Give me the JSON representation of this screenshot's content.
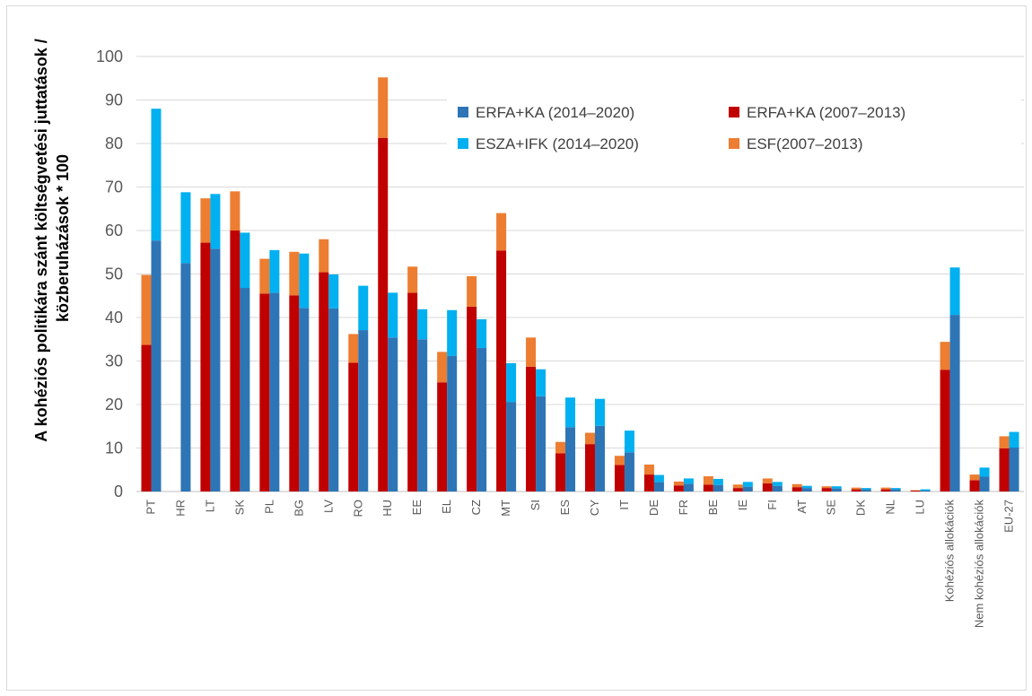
{
  "chart_data": {
    "type": "bar",
    "stacked_pairs": true,
    "ylabel_lines": [
      "A kohéziós politikára szánt költségvetési juttatások /",
      "közberuházások * 100"
    ],
    "ylim": [
      0,
      100
    ],
    "yticks": [
      0,
      10,
      20,
      30,
      40,
      50,
      60,
      70,
      80,
      90,
      100
    ],
    "grid": true,
    "legend_position": "top-right, inside plot",
    "categories": [
      "PT",
      "HR",
      "LT",
      "SK",
      "PL",
      "BG",
      "LV",
      "RO",
      "HU",
      "EE",
      "EL",
      "CZ",
      "MT",
      "SI",
      "ES",
      "CY",
      "IT",
      "DE",
      "FR",
      "BE",
      "IE",
      "FI",
      "AT",
      "SE",
      "DK",
      "NL",
      "LU",
      "Kohéziós allokációk",
      "Nem kohéziós allokációk",
      "EU-27"
    ],
    "series": [
      {
        "name": "ERFA+KA (2007–2013)",
        "color": "#c00000",
        "bar": "left",
        "values": [
          33.7,
          0,
          57.2,
          60,
          45.5,
          45.1,
          50.4,
          29.6,
          81.3,
          45.7,
          25.1,
          42.5,
          55.4,
          28.7,
          8.8,
          10.9,
          6.1,
          3.9,
          1.4,
          1.6,
          0.8,
          1.9,
          1.0,
          0.8,
          0.5,
          0.5,
          0.2,
          28,
          2.6,
          9.9
        ]
      },
      {
        "name": "ESF(2007–2013)",
        "color": "#ed7d31",
        "bar": "left",
        "values": [
          16.1,
          0,
          10.2,
          9,
          8,
          10,
          7.6,
          6.6,
          13.9,
          6,
          7,
          7,
          8.6,
          6.7,
          2.6,
          2.6,
          2.1,
          2.3,
          0.9,
          1.9,
          0.8,
          1.1,
          0.7,
          0.4,
          0.4,
          0.4,
          0.1,
          6.4,
          1.3,
          2.8
        ]
      },
      {
        "name": "ERFA+KA (2014–2020)",
        "color": "#2e75b6",
        "bar": "right",
        "values": [
          57.7,
          52.5,
          55.8,
          46.8,
          45.7,
          42.2,
          42.1,
          37.1,
          35.4,
          35,
          31.2,
          33,
          20.6,
          21.9,
          14.8,
          15.1,
          9,
          2.2,
          1.8,
          1.5,
          1.1,
          1.3,
          0.8,
          0.7,
          0.5,
          0.5,
          0.2,
          40.6,
          3.4,
          10.1
        ]
      },
      {
        "name": "ESZA+IFK (2014–2020)",
        "color": "#00b0f0",
        "bar": "right",
        "values": [
          30.3,
          16.3,
          12.6,
          12.7,
          9.8,
          12.5,
          7.8,
          10.2,
          10.3,
          6.9,
          10.5,
          6.6,
          8.9,
          6.2,
          6.8,
          6.2,
          5,
          1.6,
          1.2,
          1.4,
          1.1,
          0.9,
          0.5,
          0.5,
          0.3,
          0.3,
          0.3,
          10.9,
          2.1,
          3.6
        ]
      }
    ]
  }
}
